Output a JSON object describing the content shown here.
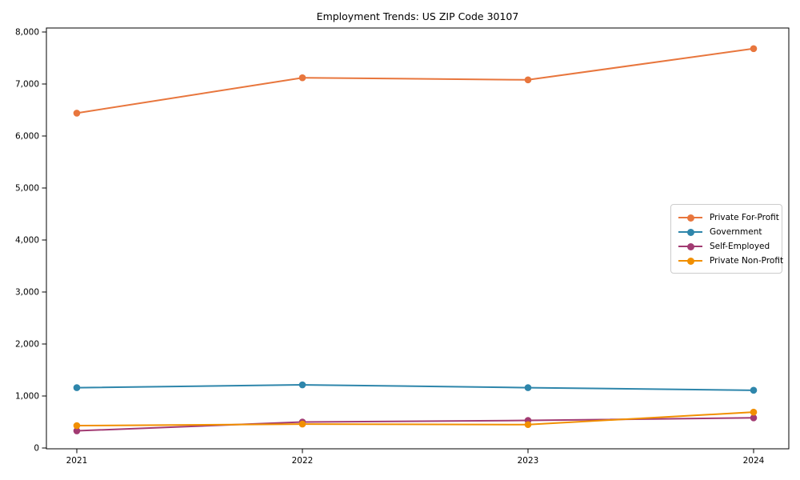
{
  "chart_data": {
    "type": "line",
    "title": "Employment Trends: US ZIP Code 30107",
    "categories": [
      "2021",
      "2022",
      "2023",
      "2024"
    ],
    "series": [
      {
        "name": "Private For-Profit",
        "color": "#e8763d",
        "values": [
          6440,
          7120,
          7080,
          7680
        ]
      },
      {
        "name": "Government",
        "color": "#2e86ab",
        "values": [
          1160,
          1215,
          1160,
          1110
        ]
      },
      {
        "name": "Self-Employed",
        "color": "#a23b72",
        "values": [
          330,
          500,
          530,
          580
        ]
      },
      {
        "name": "Private Non-Profit",
        "color": "#f18f01",
        "values": [
          430,
          460,
          450,
          690
        ]
      }
    ],
    "xlabel": "",
    "ylabel": "",
    "ylim": [
      0,
      8000
    ],
    "ytick_step": 1000,
    "ytick_labels": [
      "0",
      "1,000",
      "2,000",
      "3,000",
      "4,000",
      "5,000",
      "6,000",
      "7,000",
      "8,000"
    ],
    "grid": false,
    "legend_position": "center right"
  },
  "style": {
    "spine_color": "#000000",
    "tick_color": "#000000",
    "tick_label_color": "#000000",
    "background": "#ffffff",
    "legend_border_color": "#cccccc"
  }
}
